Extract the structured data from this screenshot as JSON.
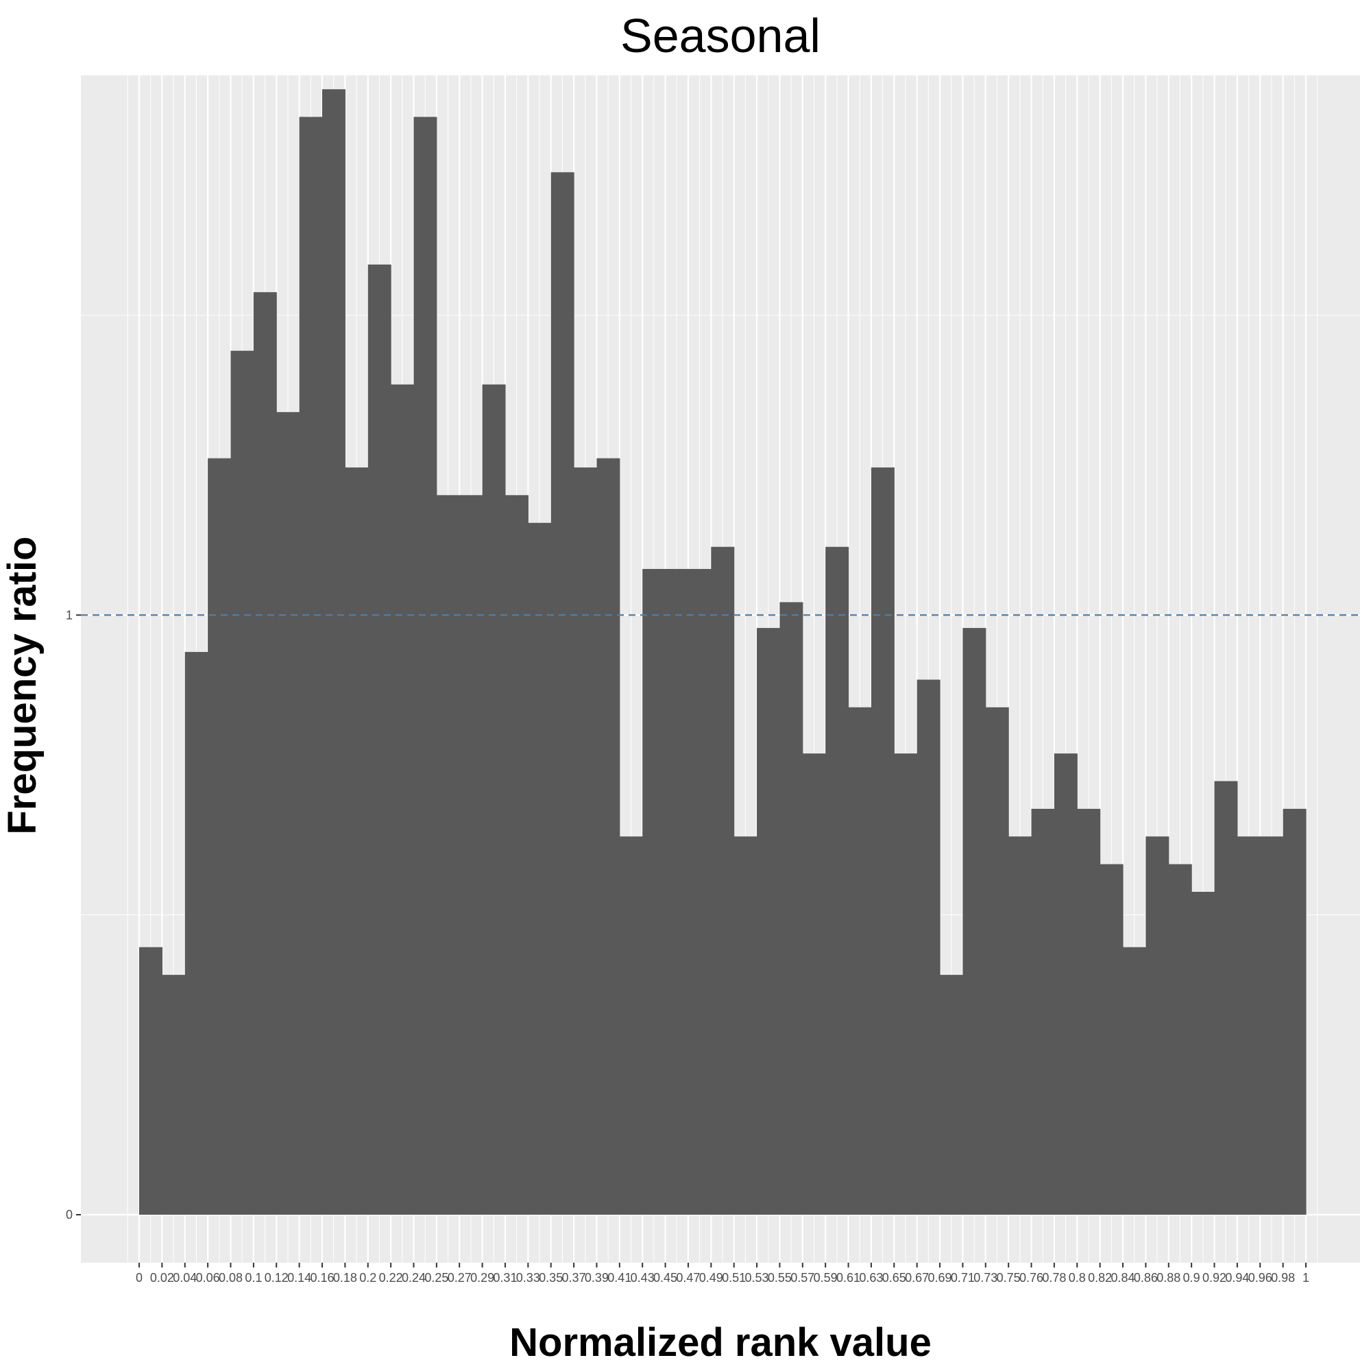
{
  "chart_data": {
    "type": "bar",
    "title": "Seasonal",
    "xlabel": "Normalized rank value",
    "ylabel": "Frequency ratio",
    "x_tick_labels": [
      "0",
      "0.02",
      "0.04",
      "0.06",
      "0.08",
      "0.1",
      "0.12",
      "0.14",
      "0.16",
      "0.18",
      "0.2",
      "0.22",
      "0.24",
      "0.25",
      "0.27",
      "0.29",
      "0.31",
      "0.33",
      "0.35",
      "0.37",
      "0.39",
      "0.41",
      "0.43",
      "0.45",
      "0.47",
      "0.49",
      "0.51",
      "0.53",
      "0.55",
      "0.57",
      "0.59",
      "0.61",
      "0.63",
      "0.65",
      "0.67",
      "0.69",
      "0.71",
      "0.73",
      "0.75",
      "0.76",
      "0.78",
      "0.8",
      "0.82",
      "0.84",
      "0.86",
      "0.88",
      "0.9",
      "0.92",
      "0.94",
      "0.96",
      "0.98",
      "1"
    ],
    "y_tick_labels": [
      "0",
      "1"
    ],
    "y_ticks": [
      0,
      1
    ],
    "ylim": [
      -0.08,
      1.9
    ],
    "reference_line": {
      "y": 1,
      "style": "dashed",
      "color": "#4a7eb5"
    },
    "bar_color": "#595959",
    "panel_background": "#ebebeb",
    "grid": true,
    "values": [
      0.4462,
      0.4,
      0.9385,
      1.2615,
      1.4408,
      1.5385,
      1.3385,
      1.8308,
      1.8769,
      1.2462,
      1.5846,
      1.3846,
      1.8308,
      1.2,
      1.2,
      1.3846,
      1.2,
      1.1538,
      1.7385,
      1.2462,
      1.2615,
      0.6308,
      1.0769,
      1.0769,
      1.0769,
      1.1138,
      0.6308,
      0.9785,
      1.0215,
      0.7692,
      1.1138,
      0.8462,
      1.2462,
      0.7692,
      0.8923,
      0.4,
      0.9785,
      0.8462,
      0.6308,
      0.6769,
      0.7692,
      0.6769,
      0.5846,
      0.4462,
      0.6308,
      0.5846,
      0.5385,
      0.7231,
      0.6308,
      0.6308,
      0.6769
    ]
  }
}
